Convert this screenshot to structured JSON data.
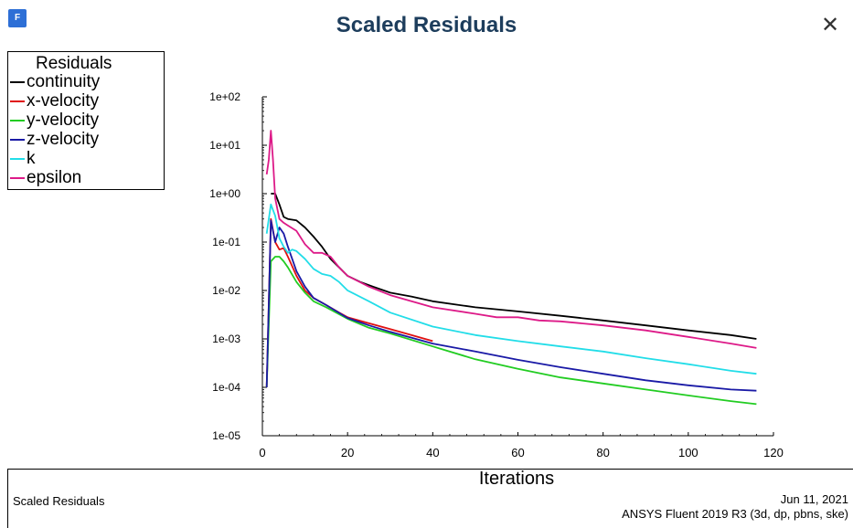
{
  "window": {
    "title": "Scaled Residuals",
    "icon": "fluent-app-icon",
    "icon_glyph": "F",
    "close_glyph": "✕"
  },
  "footer": {
    "title": "Scaled Residuals",
    "date": "Jun 11, 2021",
    "version": "ANSYS Fluent 2019 R3 (3d, dp, pbns, ske)"
  },
  "chart_data": {
    "type": "line",
    "title": "",
    "xlabel": "Iterations",
    "ylabel": "",
    "xlim": [
      0,
      120
    ],
    "ylim": [
      1e-05,
      100
    ],
    "yscale": "log",
    "xticks": [
      0,
      20,
      40,
      60,
      80,
      100,
      120
    ],
    "yticks": [
      {
        "value": 100,
        "label": "1e+02"
      },
      {
        "value": 10,
        "label": "1e+01"
      },
      {
        "value": 1,
        "label": "1e+00"
      },
      {
        "value": 0.1,
        "label": "1e-01"
      },
      {
        "value": 0.01,
        "label": "1e-02"
      },
      {
        "value": 0.001,
        "label": "1e-03"
      },
      {
        "value": 0.0001,
        "label": "1e-04"
      },
      {
        "value": 1e-05,
        "label": "1e-05"
      }
    ],
    "grid": false,
    "legend": {
      "title": "Residuals",
      "placement": "top-left"
    },
    "series": [
      {
        "name": "continuity",
        "color": "#000000",
        "x": [
          2,
          3,
          4,
          5,
          6,
          8,
          10,
          12,
          14,
          16,
          18,
          20,
          23,
          26,
          30,
          35,
          40,
          50,
          60,
          70,
          80,
          90,
          100,
          110,
          116
        ],
        "y": [
          1.0,
          1.0,
          0.6,
          0.33,
          0.3,
          0.28,
          0.2,
          0.13,
          0.08,
          0.045,
          0.03,
          0.02,
          0.015,
          0.012,
          0.009,
          0.0075,
          0.006,
          0.0045,
          0.0037,
          0.003,
          0.0024,
          0.0019,
          0.0015,
          0.0012,
          0.001
        ]
      },
      {
        "name": "x-velocity",
        "color": "#e01010",
        "x": [
          1,
          2,
          3,
          4,
          5,
          6,
          8,
          10,
          12,
          15,
          18,
          20,
          25,
          30,
          40
        ],
        "y": [
          0.0001,
          0.3,
          0.1,
          0.07,
          0.075,
          0.05,
          0.02,
          0.01,
          0.007,
          0.005,
          0.0035,
          0.0028,
          0.0021,
          0.0016,
          0.0009
        ]
      },
      {
        "name": "y-velocity",
        "color": "#22cc22",
        "x": [
          1,
          2,
          3,
          4,
          5,
          6,
          8,
          10,
          12,
          15,
          20,
          25,
          30,
          40,
          50,
          60,
          70,
          80,
          90,
          100,
          110,
          116
        ],
        "y": [
          0.0001,
          0.04,
          0.05,
          0.05,
          0.04,
          0.03,
          0.015,
          0.009,
          0.006,
          0.0045,
          0.0026,
          0.0017,
          0.0013,
          0.0007,
          0.00038,
          0.00024,
          0.00016,
          0.00012,
          9e-05,
          6.8e-05,
          5.2e-05,
          4.5e-05
        ]
      },
      {
        "name": "z-velocity",
        "color": "#1a1aa6",
        "x": [
          1,
          2,
          3,
          4,
          5,
          6,
          8,
          10,
          12,
          15,
          20,
          25,
          30,
          40,
          50,
          60,
          70,
          80,
          90,
          100,
          110,
          116
        ],
        "y": [
          0.0001,
          0.28,
          0.1,
          0.2,
          0.15,
          0.08,
          0.025,
          0.012,
          0.007,
          0.005,
          0.0027,
          0.0019,
          0.0014,
          0.0008,
          0.00055,
          0.00037,
          0.00026,
          0.00019,
          0.00014,
          0.00011,
          9e-05,
          8.5e-05
        ]
      },
      {
        "name": "k",
        "color": "#22dde8",
        "x": [
          1,
          2,
          3,
          4,
          5,
          6,
          7,
          8,
          10,
          12,
          14,
          16,
          18,
          20,
          25,
          30,
          40,
          50,
          60,
          70,
          80,
          90,
          100,
          110,
          116
        ],
        "y": [
          0.15,
          0.6,
          0.35,
          0.12,
          0.08,
          0.06,
          0.07,
          0.065,
          0.045,
          0.028,
          0.022,
          0.02,
          0.015,
          0.01,
          0.006,
          0.0035,
          0.0018,
          0.0012,
          0.0009,
          0.0007,
          0.00055,
          0.0004,
          0.0003,
          0.00022,
          0.00019
        ]
      },
      {
        "name": "epsilon",
        "color": "#dd1a88",
        "x": [
          1,
          1.5,
          2,
          2.5,
          3,
          4,
          5,
          6,
          8,
          10,
          12,
          14,
          16,
          18,
          20,
          25,
          30,
          40,
          50,
          55,
          60,
          65,
          70,
          80,
          90,
          100,
          110,
          116
        ],
        "y": [
          2.5,
          5,
          20,
          5,
          0.8,
          0.3,
          0.25,
          0.22,
          0.17,
          0.09,
          0.06,
          0.06,
          0.05,
          0.03,
          0.02,
          0.012,
          0.008,
          0.0045,
          0.0033,
          0.0028,
          0.0028,
          0.0024,
          0.0023,
          0.0019,
          0.0015,
          0.0011,
          0.0008,
          0.00065
        ]
      }
    ]
  }
}
